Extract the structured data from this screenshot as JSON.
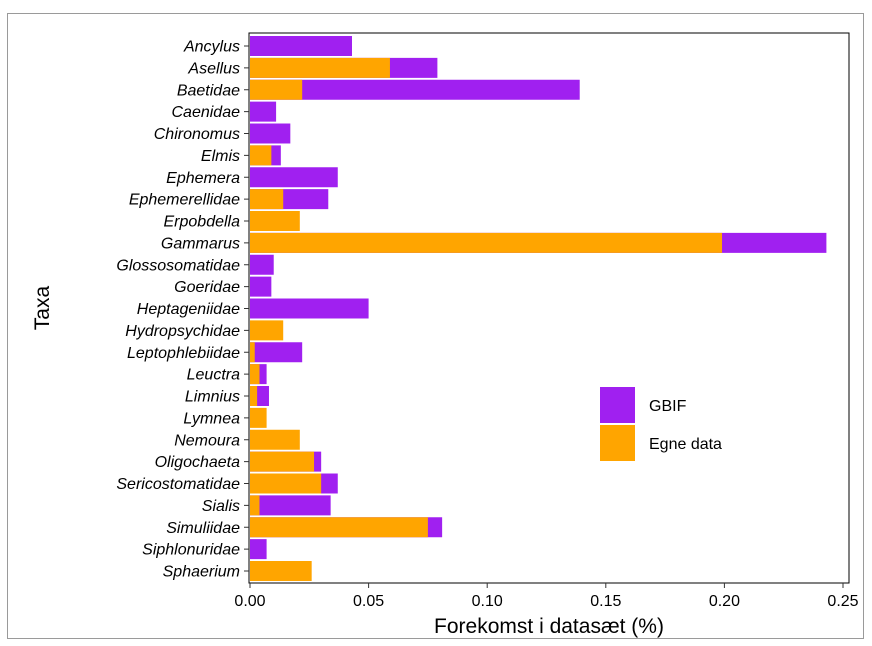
{
  "chart_data": {
    "type": "bar",
    "orientation": "horizontal",
    "stacking": "overlay",
    "xlabel": "Forekomst i datasæt (%)",
    "ylabel": "Taxa",
    "xlim": [
      0,
      0.255
    ],
    "x_ticks": [
      "0.00",
      "0.05",
      "0.10",
      "0.15",
      "0.20",
      "0.25"
    ],
    "grid": false,
    "legend_position": "right",
    "categories": [
      "Ancylus",
      "Asellus",
      "Baetidae",
      "Caenidae",
      "Chironomus",
      "Elmis",
      "Ephemera",
      "Ephemerellidae",
      "Erpobdella",
      "Gammarus",
      "Glossosomatidae",
      "Goeridae",
      "Heptageniidae",
      "Hydropsychidae",
      "Leptophlebiidae",
      "Leuctra",
      "Limnius",
      "Lymnea",
      "Nemoura",
      "Oligochaeta",
      "Sericostomatidae",
      "Sialis",
      "Simuliidae",
      "Siphlonuridae",
      "Sphaerium"
    ],
    "series": [
      {
        "name": "GBIF",
        "color": "#a020f0",
        "values": [
          0.043,
          0.079,
          0.139,
          0.011,
          0.017,
          0.013,
          0.037,
          0.033,
          0.0,
          0.243,
          0.01,
          0.009,
          0.05,
          0.0,
          0.022,
          0.007,
          0.008,
          0.0,
          0.0,
          0.03,
          0.037,
          0.034,
          0.081,
          0.007,
          0.0
        ]
      },
      {
        "name": "Egne data",
        "color": "#ffa500",
        "values": [
          0.0,
          0.059,
          0.022,
          0.0,
          0.0,
          0.009,
          0.0,
          0.014,
          0.021,
          0.199,
          0.0,
          0.0,
          0.0,
          0.014,
          0.002,
          0.004,
          0.003,
          0.007,
          0.021,
          0.027,
          0.03,
          0.004,
          0.075,
          0.0,
          0.026
        ]
      }
    ]
  }
}
